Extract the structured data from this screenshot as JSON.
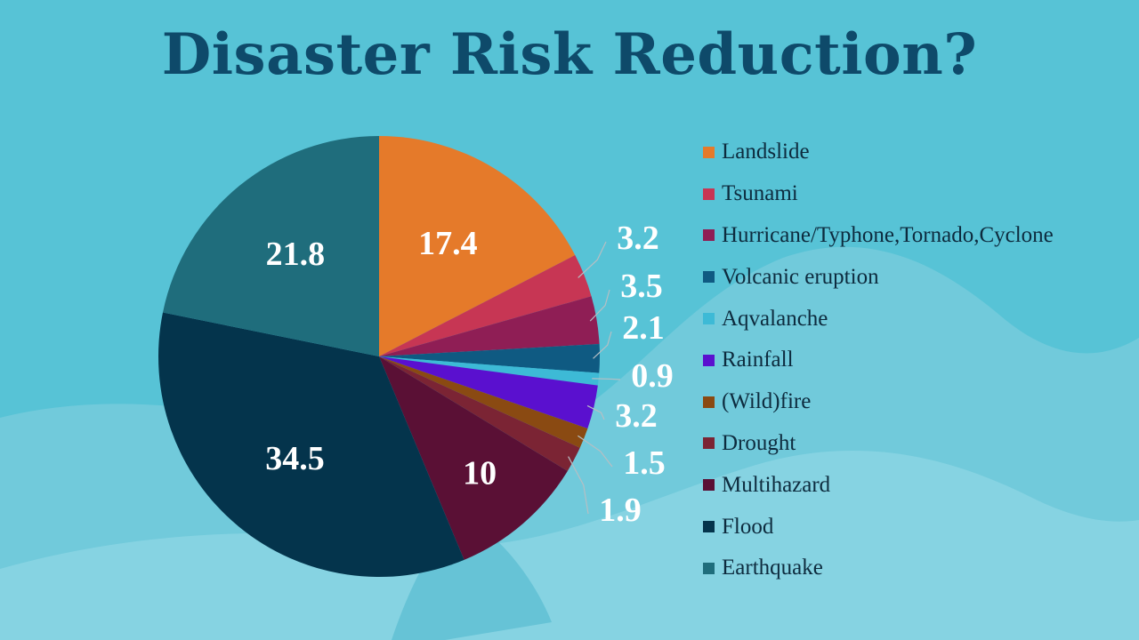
{
  "chart_data": {
    "type": "pie",
    "title": "Disaster Risk Reduction?",
    "start_angle_deg": 0,
    "direction": "clockwise",
    "legend_position": "right",
    "slices": [
      {
        "label": "Landslide",
        "value": 17.4,
        "display": "17.4",
        "color": "#e57a2a",
        "label_pos": "inside"
      },
      {
        "label": "Tsunami",
        "value": 3.2,
        "display": "3.2",
        "color": "#c73654",
        "label_pos": "outside"
      },
      {
        "label": "Hurricane/Typhone,Tornado,Cyclone",
        "value": 3.5,
        "display": "3.5",
        "color": "#8f1e55",
        "label_pos": "outside"
      },
      {
        "label": "Volcanic eruption",
        "value": 2.1,
        "display": "2.1",
        "color": "#0f5a82",
        "label_pos": "outside"
      },
      {
        "label": "Aqvalanche",
        "value": 0.9,
        "display": "0.9",
        "color": "#3dbad6",
        "label_pos": "outside"
      },
      {
        "label": "Rainfall",
        "value": 3.2,
        "display": "3.2",
        "color": "#5a10cf",
        "label_pos": "outside"
      },
      {
        "label": "(Wild)fire",
        "value": 1.5,
        "display": "1.5",
        "color": "#8a4a12",
        "label_pos": "outside"
      },
      {
        "label": "Drought",
        "value": 1.9,
        "display": "1.9",
        "color": "#7b2434",
        "label_pos": "outside"
      },
      {
        "label": "Multihazard",
        "value": 10,
        "display": "10",
        "color": "#5a1035",
        "label_pos": "inside"
      },
      {
        "label": "Flood",
        "value": 34.5,
        "display": "34.5",
        "color": "#04344c",
        "label_pos": "inside"
      },
      {
        "label": "Earthquake",
        "value": 21.8,
        "display": "21.8",
        "color": "#1f6d7c",
        "label_pos": "inside"
      }
    ]
  }
}
